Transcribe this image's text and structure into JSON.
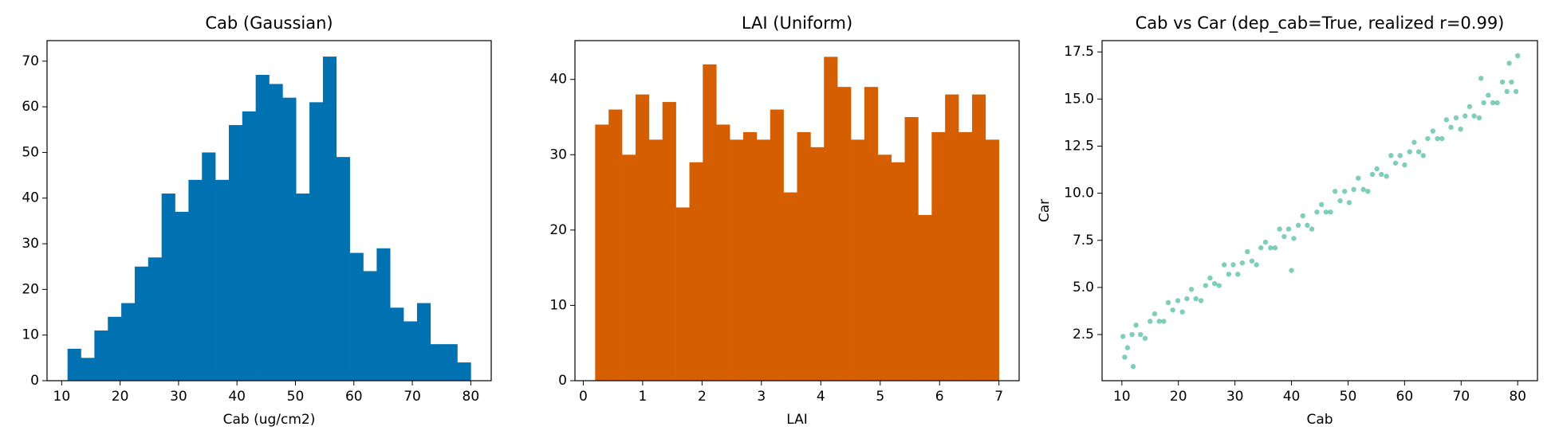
{
  "chart_data": [
    {
      "type": "histogram",
      "title": "Cab (Gaussian)",
      "xlabel": "Cab (ug/cm2)",
      "color": "#0072b2",
      "bins": [
        11.0,
        13.3,
        15.6,
        17.9,
        20.2,
        22.5,
        24.8,
        27.1,
        29.4,
        31.7,
        34.0,
        36.3,
        38.6,
        40.9,
        43.2,
        45.5,
        47.8,
        50.1,
        52.4,
        54.7,
        57.0,
        59.3,
        61.6,
        63.9,
        66.2,
        68.5,
        70.8,
        73.1,
        75.4,
        77.7,
        80.0
      ],
      "values": [
        7,
        5,
        11,
        14,
        17,
        25,
        27,
        41,
        37,
        44,
        50,
        44,
        56,
        59,
        67,
        65,
        62,
        41,
        61,
        71,
        49,
        28,
        24,
        29,
        16,
        13,
        17,
        8,
        8,
        4
      ],
      "xlim": [
        7.5,
        83.5
      ],
      "xticks": [
        10,
        20,
        30,
        40,
        50,
        60,
        70,
        80
      ],
      "ylim": [
        0,
        74.5
      ],
      "yticks": [
        0,
        10,
        20,
        30,
        40,
        50,
        60,
        70
      ]
    },
    {
      "type": "histogram",
      "title": "LAI (Uniform)",
      "xlabel": "LAI",
      "color": "#d55e00",
      "bins": [
        0.2,
        0.427,
        0.653,
        0.88,
        1.107,
        1.333,
        1.56,
        1.787,
        2.013,
        2.24,
        2.467,
        2.693,
        2.92,
        3.147,
        3.373,
        3.6,
        3.827,
        4.053,
        4.28,
        4.507,
        4.733,
        4.96,
        5.187,
        5.413,
        5.64,
        5.867,
        6.093,
        6.32,
        6.547,
        6.773,
        7.0
      ],
      "values": [
        34,
        36,
        30,
        38,
        32,
        37,
        23,
        29,
        42,
        34,
        32,
        33,
        32,
        36,
        25,
        33,
        31,
        43,
        39,
        32,
        39,
        30,
        29,
        35,
        22,
        33,
        38,
        33,
        38,
        32
      ],
      "xlim": [
        -0.14,
        7.34
      ],
      "xticks": [
        0,
        1,
        2,
        3,
        4,
        5,
        6,
        7
      ],
      "ylim": [
        0,
        45.15
      ],
      "yticks": [
        0,
        10,
        20,
        30,
        40
      ]
    },
    {
      "type": "scatter",
      "title": "Cab vs Car (dep_cab=True, realized r=0.99)",
      "xlabel": "Cab",
      "ylabel": "Car",
      "color": "#009e73",
      "x": [
        10.2,
        11.0,
        11.8,
        12.5,
        13.3,
        14.1,
        15.0,
        15.8,
        16.6,
        17.4,
        18.2,
        19.0,
        19.9,
        20.7,
        21.5,
        22.3,
        23.1,
        24.0,
        24.8,
        25.6,
        26.4,
        27.2,
        28.1,
        28.9,
        29.7,
        30.5,
        31.3,
        32.2,
        33.0,
        33.8,
        34.6,
        35.4,
        36.3,
        37.1,
        37.9,
        38.7,
        39.5,
        40.4,
        41.2,
        42.0,
        42.8,
        43.6,
        44.5,
        45.3,
        46.1,
        46.9,
        47.7,
        48.6,
        49.4,
        50.2,
        51.0,
        51.8,
        52.7,
        53.5,
        54.3,
        55.1,
        55.9,
        56.8,
        57.6,
        58.4,
        59.2,
        60.0,
        60.9,
        61.7,
        62.5,
        63.3,
        64.1,
        65.0,
        65.8,
        66.6,
        67.4,
        68.2,
        69.1,
        69.9,
        70.7,
        71.5,
        72.3,
        73.2,
        74.0,
        74.8,
        75.6,
        76.4,
        77.3,
        78.1,
        78.9,
        79.7,
        12.0,
        80.0,
        73.5,
        40.0,
        78.5,
        10.5
      ],
      "values": [
        2.4,
        1.8,
        2.5,
        3.0,
        2.5,
        2.3,
        3.2,
        3.6,
        3.2,
        3.2,
        4.2,
        3.8,
        4.3,
        3.7,
        4.4,
        4.9,
        4.4,
        4.3,
        5.1,
        5.5,
        5.2,
        5.1,
        6.2,
        5.7,
        6.2,
        5.7,
        6.3,
        6.9,
        6.4,
        6.2,
        7.1,
        7.4,
        7.1,
        7.1,
        8.1,
        7.7,
        8.1,
        7.6,
        8.3,
        8.8,
        8.3,
        8.1,
        9.0,
        9.4,
        9.0,
        9.0,
        10.1,
        9.6,
        10.1,
        9.5,
        10.2,
        10.8,
        10.2,
        10.1,
        11.0,
        11.3,
        11.0,
        10.9,
        12.0,
        11.6,
        12.0,
        11.5,
        12.2,
        12.7,
        12.2,
        12.0,
        12.9,
        13.3,
        12.9,
        12.9,
        13.9,
        13.5,
        14.0,
        13.4,
        14.1,
        14.6,
        14.1,
        14.0,
        14.8,
        15.2,
        14.8,
        14.8,
        15.9,
        15.4,
        15.9,
        15.4,
        0.8,
        17.3,
        16.1,
        5.9,
        16.9,
        1.3
      ],
      "xlim": [
        6.5,
        83.5
      ],
      "xticks": [
        10,
        20,
        30,
        40,
        50,
        60,
        70,
        80
      ],
      "ylim": [
        0.05,
        18.1
      ],
      "yticks": [
        2.5,
        {
          "value": 5,
          "label": "5.0"
        },
        7.5,
        {
          "value": 10,
          "label": "10.0"
        },
        12.5,
        {
          "value": 15,
          "label": "15.0"
        },
        17.5
      ]
    }
  ]
}
